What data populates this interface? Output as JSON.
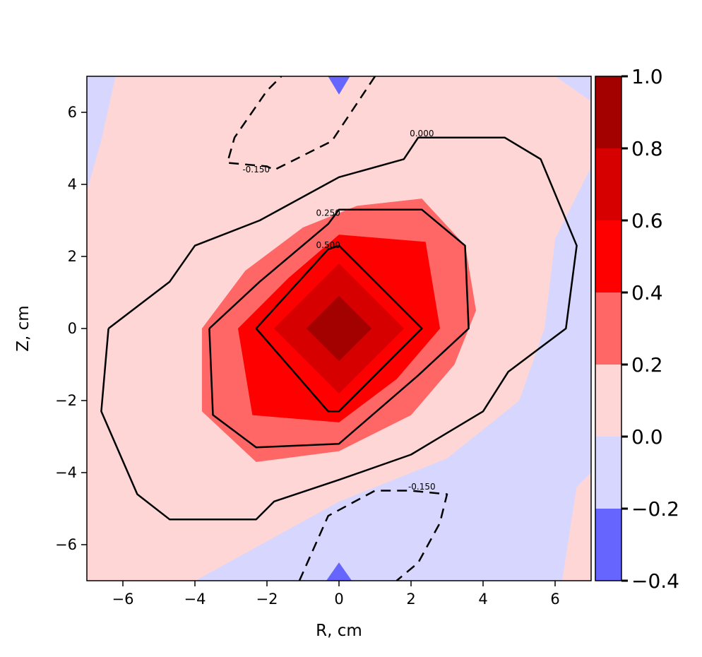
{
  "chart_data": {
    "type": "heatmap",
    "subtype": "filled contour with contour lines",
    "title": "",
    "xlabel": "R, cm",
    "ylabel": "Z, cm",
    "xlim": [
      -7,
      7
    ],
    "ylim": [
      -7,
      7
    ],
    "xticks": [
      -6,
      -4,
      -2,
      0,
      2,
      4,
      6
    ],
    "yticks": [
      -6,
      -4,
      -2,
      0,
      2,
      4,
      6
    ],
    "xtick_labels": [
      "−6",
      "−4",
      "−2",
      "0",
      "2",
      "4",
      "6"
    ],
    "ytick_labels": [
      "−6",
      "−4",
      "−2",
      "0",
      "2",
      "4",
      "6"
    ],
    "grid": false,
    "colorbar": {
      "levels": [
        -0.4,
        -0.2,
        0.0,
        0.2,
        0.4,
        0.6,
        0.8,
        1.0
      ],
      "tick_labels": [
        "−0.4",
        "−0.2",
        "0.0",
        "0.2",
        "0.4",
        "0.6",
        "0.8",
        "1.0"
      ],
      "colors": [
        "#6666ff",
        "#d6d6ff",
        "#ffd6d6",
        "#ff6666",
        "#ff0000",
        "#d60000",
        "#a30000"
      ]
    },
    "filled_regions": [
      {
        "level_range": [
          -0.2,
          0.0
        ],
        "color": "#d6d6ff",
        "polygon": [
          [
            -7,
            -7
          ],
          [
            7,
            -7
          ],
          [
            7,
            7
          ],
          [
            -7,
            7
          ]
        ]
      },
      {
        "level_range": [
          0.0,
          0.2
        ],
        "color": "#ffd6d6",
        "polygon": [
          [
            -7,
            3.8
          ],
          [
            -6.6,
            5.2
          ],
          [
            -6.2,
            7
          ],
          [
            6.0,
            7
          ],
          [
            7,
            6.3
          ],
          [
            7,
            4.5
          ],
          [
            6.5,
            3.5
          ],
          [
            6.0,
            2.5
          ],
          [
            5.7,
            0
          ],
          [
            5.0,
            -2.0
          ],
          [
            3.0,
            -3.6
          ],
          [
            0,
            -4.8
          ],
          [
            -4,
            -7
          ],
          [
            -7,
            -7
          ]
        ]
      },
      {
        "level_range": [
          0.0,
          0.2
        ],
        "color": "#ffd6d6",
        "polygon": [
          [
            6.2,
            -7
          ],
          [
            7,
            -7
          ],
          [
            7,
            -4.0
          ],
          [
            6.6,
            -4.4
          ]
        ]
      },
      {
        "level_range": [
          0.2,
          0.4
        ],
        "color": "#ff6666",
        "polygon": [
          [
            -3.8,
            0
          ],
          [
            -2.6,
            1.6
          ],
          [
            -1.0,
            2.8
          ],
          [
            0.5,
            3.4
          ],
          [
            2.3,
            3.6
          ],
          [
            3.5,
            2.3
          ],
          [
            3.8,
            0.5
          ],
          [
            3.2,
            -1.0
          ],
          [
            2.0,
            -2.4
          ],
          [
            0,
            -3.4
          ],
          [
            -2.3,
            -3.7
          ],
          [
            -3.8,
            -2.3
          ]
        ]
      },
      {
        "level_range": [
          0.4,
          0.6
        ],
        "color": "#ff0000",
        "polygon": [
          [
            -2.8,
            0
          ],
          [
            -1.4,
            1.4
          ],
          [
            0,
            2.6
          ],
          [
            2.4,
            2.4
          ],
          [
            2.8,
            0
          ],
          [
            1.6,
            -1.4
          ],
          [
            0,
            -2.6
          ],
          [
            -2.4,
            -2.4
          ]
        ]
      },
      {
        "level_range": [
          0.6,
          0.8
        ],
        "color": "#d60000",
        "polygon": [
          [
            -1.8,
            0
          ],
          [
            0,
            1.8
          ],
          [
            1.8,
            0
          ],
          [
            0,
            -1.8
          ]
        ]
      },
      {
        "level_range": [
          0.8,
          1.0
        ],
        "color": "#a30000",
        "polygon": [
          [
            -0.9,
            0
          ],
          [
            0,
            0.9
          ],
          [
            0.9,
            0
          ],
          [
            0,
            -0.9
          ]
        ]
      },
      {
        "level_range": [
          -0.4,
          -0.2
        ],
        "color": "#6666ff",
        "polygon": [
          [
            -0.3,
            7
          ],
          [
            0.3,
            7
          ],
          [
            0,
            6.5
          ]
        ]
      },
      {
        "level_range": [
          -0.4,
          -0.2
        ],
        "color": "#6666ff",
        "polygon": [
          [
            -0.35,
            -7
          ],
          [
            0.35,
            -7
          ],
          [
            0,
            -6.5
          ]
        ]
      }
    ],
    "contour_lines": [
      {
        "level": 0.0,
        "label": "0.000",
        "style": "solid",
        "points": [
          [
            -6.4,
            0
          ],
          [
            -4.7,
            1.3
          ],
          [
            -4.0,
            2.3
          ],
          [
            -2.2,
            3.0
          ],
          [
            0,
            4.2
          ],
          [
            1.8,
            4.7
          ],
          [
            2.2,
            5.3
          ],
          [
            4.6,
            5.3
          ],
          [
            5.6,
            4.7
          ],
          [
            6.6,
            2.3
          ],
          [
            6.3,
            0
          ],
          [
            4.7,
            -1.2
          ],
          [
            4.0,
            -2.3
          ],
          [
            2.0,
            -3.5
          ],
          [
            0,
            -4.2
          ],
          [
            -1.8,
            -4.8
          ],
          [
            -2.3,
            -5.3
          ],
          [
            -4.7,
            -5.3
          ],
          [
            -5.6,
            -4.6
          ],
          [
            -6.6,
            -2.3
          ],
          [
            -6.4,
            0
          ]
        ],
        "label_at": [
          2.3,
          5.4
        ]
      },
      {
        "level": 0.25,
        "label": "0.250",
        "style": "solid",
        "points": [
          [
            -3.6,
            0
          ],
          [
            -2.2,
            1.3
          ],
          [
            -0.3,
            2.9
          ],
          [
            0,
            3.3
          ],
          [
            2.3,
            3.3
          ],
          [
            3.5,
            2.3
          ],
          [
            3.6,
            0
          ],
          [
            2.2,
            -1.3
          ],
          [
            0,
            -3.2
          ],
          [
            -2.3,
            -3.3
          ],
          [
            -3.5,
            -2.4
          ],
          [
            -3.6,
            0
          ]
        ],
        "label_at": [
          -0.3,
          3.2
        ]
      },
      {
        "level": 0.5,
        "label": "0.500",
        "style": "solid",
        "points": [
          [
            -2.3,
            0
          ],
          [
            -0.3,
            2.2
          ],
          [
            0,
            2.3
          ],
          [
            2.3,
            0
          ],
          [
            0,
            -2.3
          ],
          [
            -0.3,
            -2.3
          ],
          [
            -2.3,
            0
          ]
        ],
        "label_at": [
          -0.3,
          2.3
        ]
      },
      {
        "level": -0.15,
        "label": "-0.150",
        "style": "dashed",
        "points": [
          [
            1.0,
            7
          ],
          [
            -0.2,
            5.2
          ],
          [
            -1.8,
            4.4
          ],
          [
            -2.0,
            4.5
          ],
          [
            -3.1,
            4.6
          ],
          [
            -2.9,
            5.3
          ],
          [
            -2.0,
            6.6
          ],
          [
            -1.6,
            7
          ]
        ],
        "label_at": [
          -2.3,
          4.4
        ]
      },
      {
        "level": -0.15,
        "label": "-0.150",
        "style": "dashed",
        "points": [
          [
            -1.1,
            -7
          ],
          [
            -0.3,
            -5.2
          ],
          [
            1.0,
            -4.5
          ],
          [
            2.0,
            -4.5
          ],
          [
            3.0,
            -4.6
          ],
          [
            2.8,
            -5.4
          ],
          [
            2.2,
            -6.5
          ],
          [
            1.6,
            -7
          ]
        ],
        "label_at": [
          2.3,
          -4.4
        ]
      }
    ]
  }
}
